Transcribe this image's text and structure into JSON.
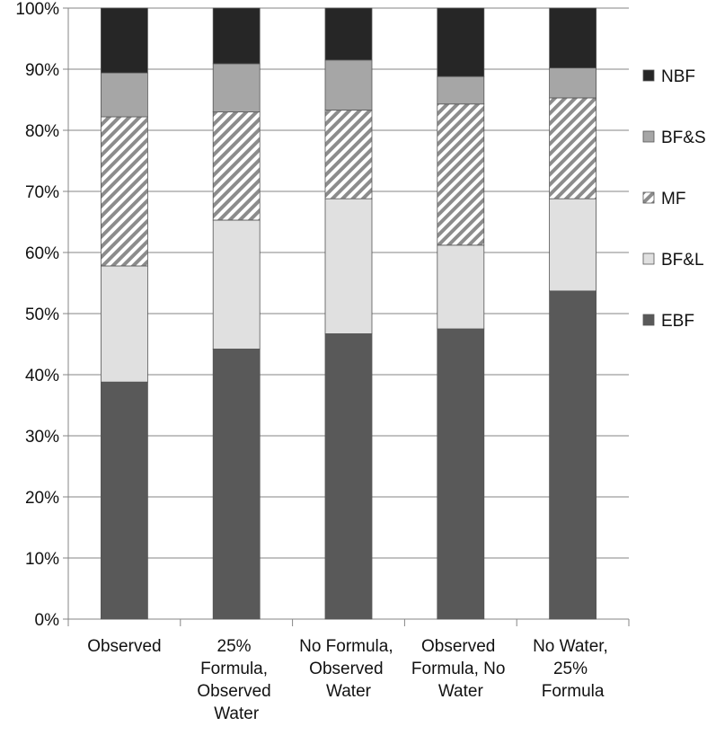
{
  "chart_data": {
    "type": "stacked-bar",
    "categories": [
      "Observed",
      "25%\nFormula,\nObserved\nWater",
      "No Formula,\nObserved\nWater",
      "Observed\nFormula, No\nWater",
      "No Water,\n25%\nFormula"
    ],
    "series": [
      {
        "name": "EBF",
        "color": "#595959",
        "values": [
          38.8,
          44.2,
          46.7,
          47.5,
          53.7
        ]
      },
      {
        "name": "BF&L",
        "color": "#e0e0e0",
        "values": [
          19.0,
          21.1,
          22.1,
          13.7,
          15.1
        ]
      },
      {
        "name": "MF",
        "color": "#8c8c8c",
        "pattern": "diagonal-hatch",
        "values": [
          24.4,
          17.7,
          14.5,
          23.1,
          16.5
        ]
      },
      {
        "name": "BF&S",
        "color": "#a6a6a6",
        "values": [
          7.2,
          7.9,
          8.2,
          4.5,
          4.9
        ]
      },
      {
        "name": "NBF",
        "color": "#262626",
        "values": [
          10.6,
          9.1,
          8.5,
          11.2,
          9.8
        ]
      }
    ],
    "ylim": [
      0,
      100
    ],
    "yticks": [
      {
        "value": 0,
        "label": "0%"
      },
      {
        "value": 10,
        "label": "10%"
      },
      {
        "value": 20,
        "label": "20%"
      },
      {
        "value": 30,
        "label": "30%"
      },
      {
        "value": 40,
        "label": "40%"
      },
      {
        "value": 50,
        "label": "50%"
      },
      {
        "value": 60,
        "label": "60%"
      },
      {
        "value": 70,
        "label": "70%"
      },
      {
        "value": 80,
        "label": "80%"
      },
      {
        "value": 90,
        "label": "90%"
      },
      {
        "value": 100,
        "label": "100%"
      }
    ],
    "grid": true,
    "legend": "right"
  }
}
